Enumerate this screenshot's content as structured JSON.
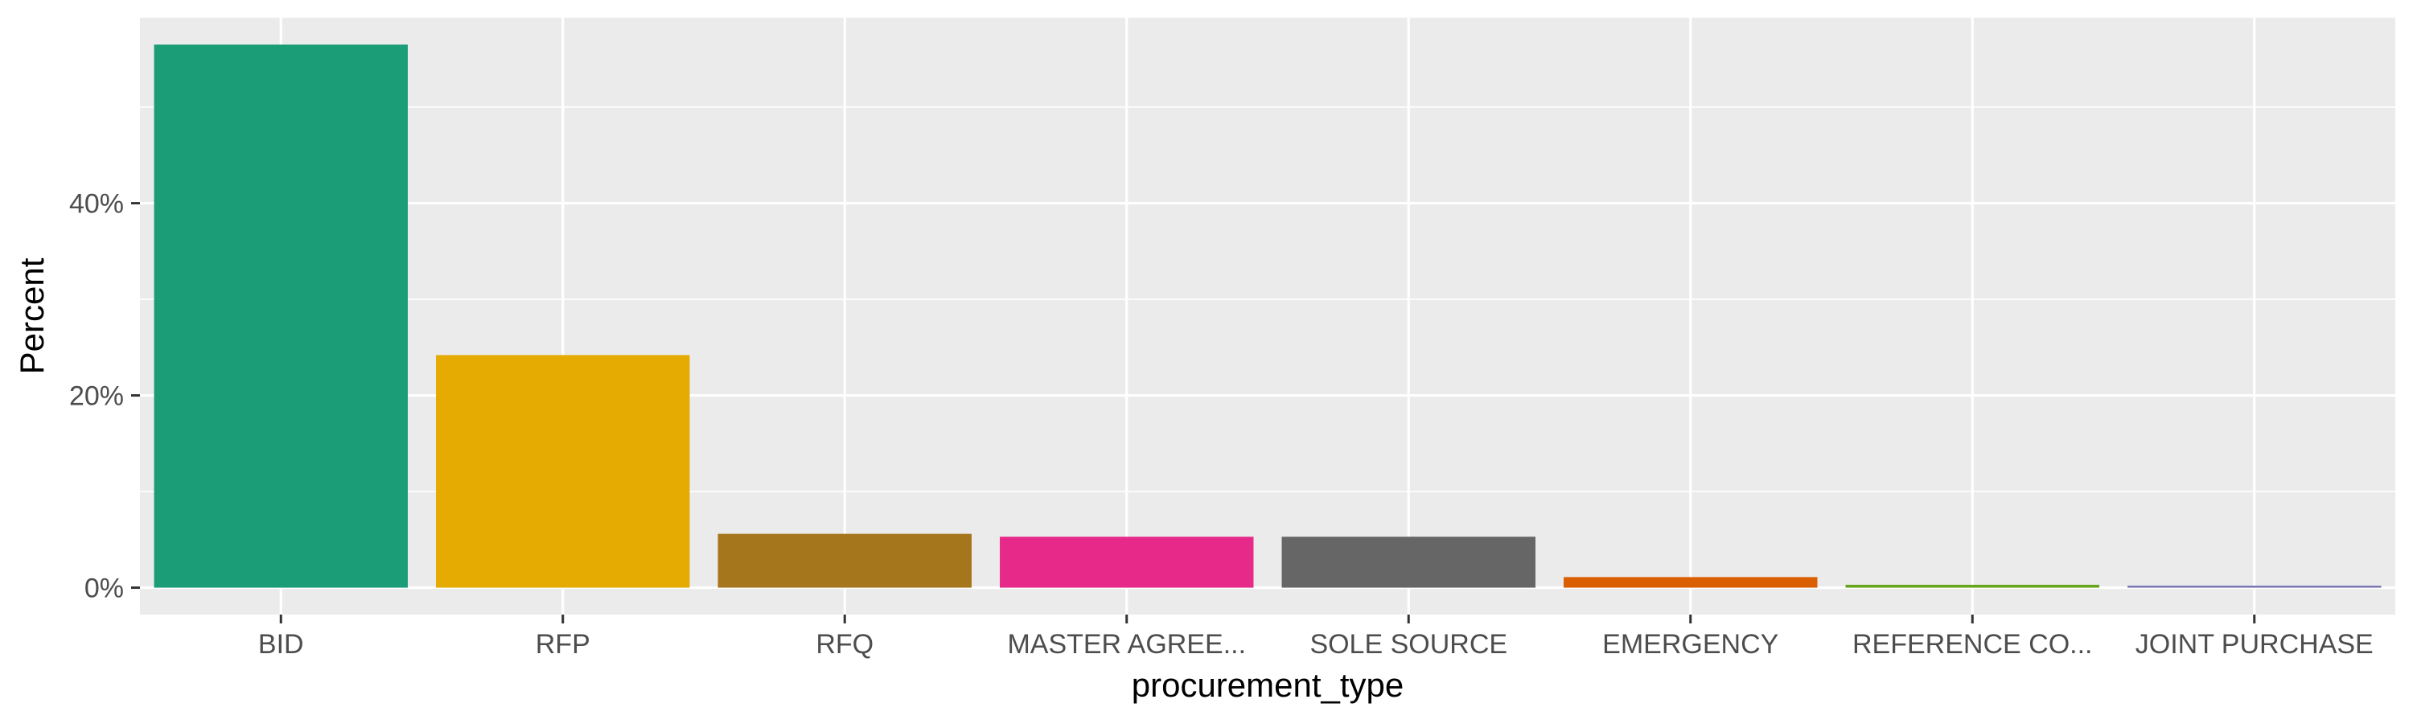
{
  "chart_data": {
    "type": "bar",
    "title": "",
    "xlabel": "procurement_type",
    "ylabel": "Percent",
    "categories": [
      "BID",
      "RFP",
      "RFQ",
      "MASTER AGREE...",
      "SOLE SOURCE",
      "EMERGENCY",
      "REFERENCE CO...",
      "JOINT PURCHASE"
    ],
    "values": [
      56.5,
      24.2,
      5.6,
      5.3,
      5.3,
      1.1,
      0.3,
      0.2
    ],
    "colors": [
      "#1b9e77",
      "#e6ab02",
      "#a6761d",
      "#e7298a",
      "#666666",
      "#d95f02",
      "#66a61e",
      "#7570b3"
    ],
    "ylim": [
      -2.8,
      59.3
    ],
    "y_ticks": [
      0,
      20,
      40
    ],
    "y_tick_labels": [
      "0%",
      "20%",
      "40%"
    ],
    "grid": true,
    "legend": "none"
  }
}
